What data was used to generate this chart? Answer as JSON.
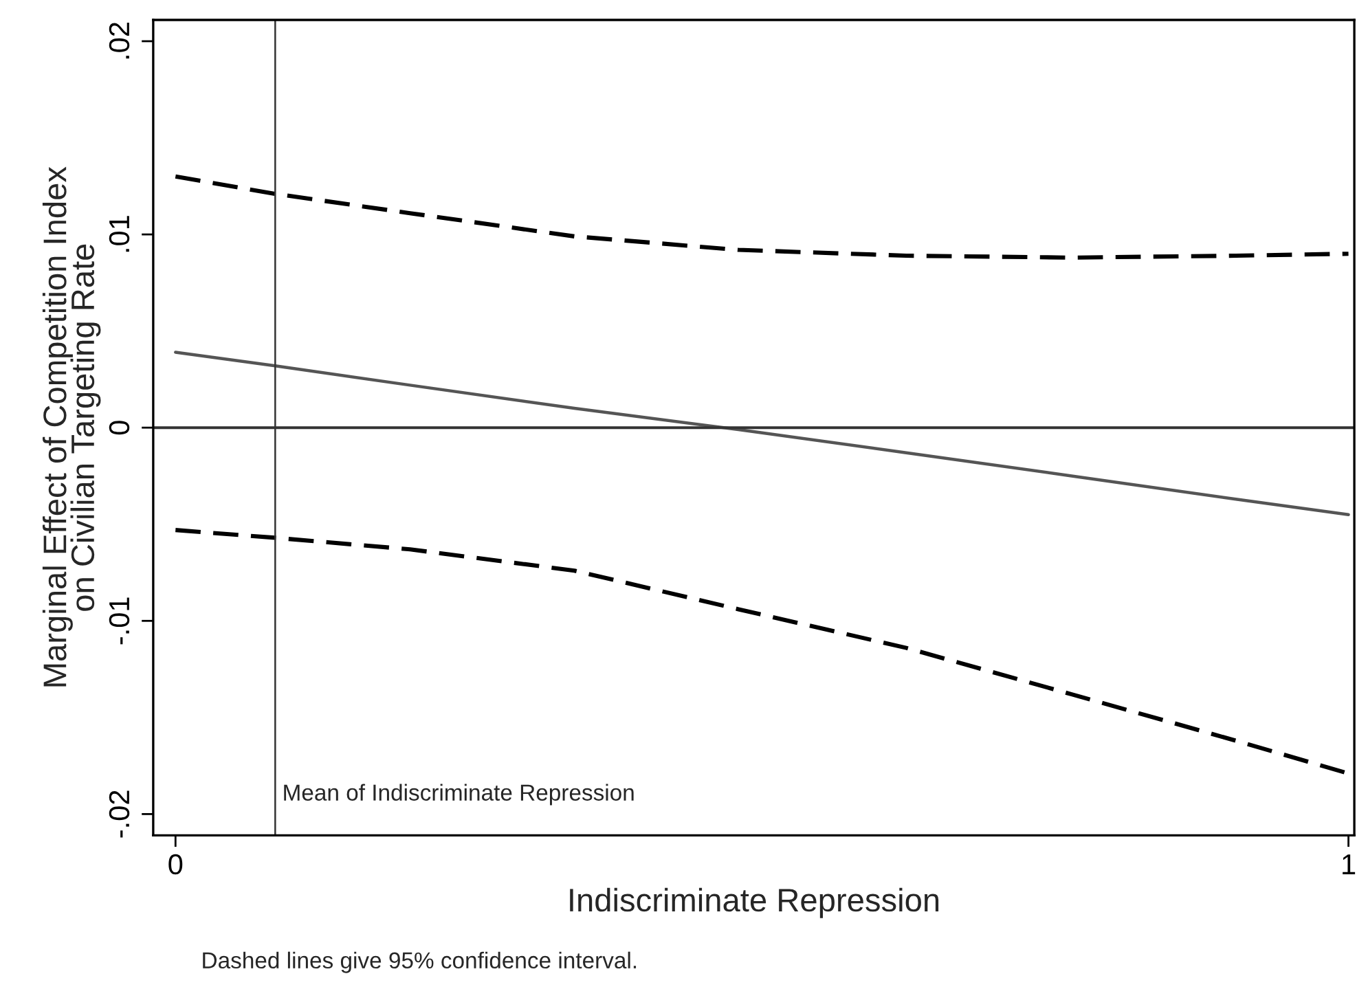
{
  "chart_data": {
    "type": "line",
    "xlabel": "Indiscriminate Repression",
    "ylabel": "Marginal Effect of Competition Index\non Civilian Targeting Rate",
    "x": [
      0,
      0.085,
      0.2,
      0.34,
      0.48,
      0.623,
      0.764,
      0.904,
      1
    ],
    "series": [
      {
        "color": "#555555",
        "line_style": "solid",
        "values": [
          0.0039,
          0.0032,
          0.0022,
          0.001,
          -0.0001,
          -0.0013,
          -0.0025,
          -0.0037,
          -0.0045
        ]
      },
      {
        "color": "#000000",
        "line_style": "dashed",
        "values": [
          0.013,
          0.0121,
          0.0111,
          0.0099,
          0.0092,
          0.0089,
          0.0088,
          0.0089,
          0.009
        ]
      },
      {
        "color": "#000000",
        "line_style": "dashed",
        "values": [
          -0.0053,
          -0.0057,
          -0.0063,
          -0.0074,
          -0.0094,
          -0.0114,
          -0.0138,
          -0.0162,
          -0.0179
        ]
      }
    ],
    "xlim": [
      -0.019,
      1.005
    ],
    "ylim": [
      -0.0211,
      0.0211
    ],
    "xticks": [
      0,
      1
    ],
    "yticks": [
      {
        "value": -0.02,
        "label": "-.02"
      },
      {
        "value": -0.01,
        "label": "-.01"
      },
      0,
      {
        "value": 0.01,
        "label": ".01"
      },
      {
        "value": 0.02,
        "label": ".02"
      }
    ],
    "ref_lines": [
      {
        "axis": "y",
        "value": 0,
        "label": null,
        "color": "#333333"
      },
      {
        "axis": "x",
        "value": 0.085,
        "label": "Mean of Indiscriminate Repression",
        "color": "#333333"
      }
    ],
    "annotations": [
      "Dashed lines give 95% confidence interval."
    ],
    "grid": false,
    "legend": false
  }
}
